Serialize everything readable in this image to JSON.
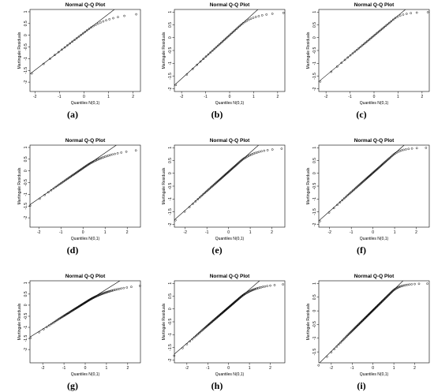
{
  "figure": {
    "panels": [
      {
        "caption": "(a)",
        "shape": 0.8
      },
      {
        "caption": "(b)",
        "shape": 0.55
      },
      {
        "caption": "(c)",
        "shape": 0.3
      },
      {
        "caption": "(d)",
        "shape": 0.8
      },
      {
        "caption": "(e)",
        "shape": 0.55
      },
      {
        "caption": "(f)",
        "shape": 0.3
      },
      {
        "caption": "(g)",
        "shape": 0.8
      },
      {
        "caption": "(h)",
        "shape": 0.55
      },
      {
        "caption": "(i)",
        "shape": 0.3
      }
    ]
  },
  "chart_data": [
    {
      "type": "scatter",
      "title": "Normal Q-Q Plot",
      "xlabel": "Quantiles N(0,1)",
      "ylabel": "Martingale Residuals",
      "n": 30,
      "xlim": [
        -2.2,
        2.3
      ],
      "ylim": [
        -2.4,
        1.1
      ],
      "xticks": [
        -2,
        -1,
        0,
        1,
        2
      ],
      "yticks": [
        1,
        0.5,
        0,
        -0.5,
        -1,
        -1.5,
        -2
      ],
      "reference_line": {
        "intercept": 0.11,
        "slope": 0.8
      },
      "point_color": "#000000",
      "line_color": "#000000"
    },
    {
      "type": "scatter",
      "title": "Normal Q-Q Plot",
      "xlabel": "Quantiles N(0,1)",
      "ylabel": "Martingale Residuals",
      "n": 40,
      "xlim": [
        -2.3,
        2.3
      ],
      "ylim": [
        -2.1,
        1.1
      ],
      "xticks": [
        -2,
        -1,
        0,
        1,
        2
      ],
      "yticks": [
        1,
        0.5,
        0,
        -0.5,
        -1,
        -1.5,
        -2
      ],
      "reference_line": {
        "intercept": 0.1,
        "slope": 0.85
      },
      "point_color": "#000000",
      "line_color": "#000000"
    },
    {
      "type": "scatter",
      "title": "Normal Q-Q Plot",
      "xlabel": "Quantiles N(0,1)",
      "ylabel": "Martingale Residuals",
      "n": 40,
      "xlim": [
        -2.3,
        2.3
      ],
      "ylim": [
        -2.1,
        1.1
      ],
      "xticks": [
        -2,
        -1,
        0,
        1,
        2
      ],
      "yticks": [
        1,
        0.5,
        0,
        -0.5,
        -1,
        -1.5,
        -2
      ],
      "reference_line": {
        "intercept": 0.08,
        "slope": 0.78
      },
      "point_color": "#000000",
      "line_color": "#000000"
    },
    {
      "type": "scatter",
      "title": "Normal Q-Q Plot",
      "xlabel": "Quantiles N(0,1)",
      "ylabel": "Martingale Residuals",
      "n": 60,
      "xlim": [
        -2.4,
        2.6
      ],
      "ylim": [
        -2.4,
        1.1
      ],
      "xticks": [
        -2,
        -1,
        0,
        1,
        2
      ],
      "yticks": [
        1,
        0.5,
        0,
        -0.5,
        -1,
        -1.5,
        -2
      ],
      "reference_line": {
        "intercept": 0.12,
        "slope": 0.65
      },
      "point_color": "#000000",
      "line_color": "#000000"
    },
    {
      "type": "scatter",
      "title": "Normal Q-Q Plot",
      "xlabel": "Quantiles N(0,1)",
      "ylabel": "Martingale Residuals",
      "n": 70,
      "xlim": [
        -2.5,
        2.6
      ],
      "ylim": [
        -2.1,
        1.1
      ],
      "xticks": [
        -2,
        -1,
        0,
        1,
        2
      ],
      "yticks": [
        1,
        0.5,
        0,
        -0.5,
        -1,
        -1.5,
        -2
      ],
      "reference_line": {
        "intercept": 0.06,
        "slope": 0.75
      },
      "point_color": "#000000",
      "line_color": "#000000"
    },
    {
      "type": "scatter",
      "title": "Normal Q-Q Plot",
      "xlabel": "Quantiles N(0,1)",
      "ylabel": "Martingale Residuals",
      "n": 70,
      "xlim": [
        -2.5,
        2.6
      ],
      "ylim": [
        -2.1,
        1.1
      ],
      "xticks": [
        -2,
        -1,
        0,
        1,
        2
      ],
      "yticks": [
        1,
        0.5,
        0,
        -0.5,
        -1,
        -1.5,
        -2
      ],
      "reference_line": {
        "intercept": 0.02,
        "slope": 0.75
      },
      "point_color": "#000000",
      "line_color": "#000000"
    },
    {
      "type": "scatter",
      "title": "Normal Q-Q Plot",
      "xlabel": "Quantiles N(0,1)",
      "ylabel": "Martingale Residuals",
      "n": 100,
      "xlim": [
        -2.6,
        2.6
      ],
      "ylim": [
        -2.6,
        1.1
      ],
      "xticks": [
        -2,
        -1,
        0,
        1,
        2
      ],
      "yticks": [
        1,
        0.5,
        0,
        -0.5,
        -1,
        -1.5,
        -2
      ],
      "reference_line": {
        "intercept": 0.12,
        "slope": 0.6
      },
      "point_color": "#000000",
      "line_color": "#000000"
    },
    {
      "type": "scatter",
      "title": "Normal Q-Q Plot",
      "xlabel": "Quantiles N(0,1)",
      "ylabel": "Martingale Residuals",
      "n": 110,
      "xlim": [
        -2.6,
        2.7
      ],
      "ylim": [
        -2.1,
        1.1
      ],
      "xticks": [
        -2,
        -1,
        0,
        1,
        2
      ],
      "yticks": [
        1,
        0.5,
        0,
        -0.5,
        -1,
        -1.5,
        -2
      ],
      "reference_line": {
        "intercept": 0.06,
        "slope": 0.7
      },
      "point_color": "#000000",
      "line_color": "#000000"
    },
    {
      "type": "scatter",
      "title": "Normal Q-Q Plot",
      "xlabel": "Quantiles N(0,1)",
      "ylabel": "Martingale Residuals",
      "n": 110,
      "xlim": [
        -2.6,
        2.7
      ],
      "ylim": [
        -1.9,
        1.1
      ],
      "xticks": [
        -2,
        -1,
        0,
        1,
        2
      ],
      "yticks": [
        1,
        0.5,
        0,
        -0.5,
        -1,
        -1.5
      ],
      "reference_line": {
        "intercept": 0.02,
        "slope": 0.75
      },
      "point_color": "#000000",
      "line_color": "#000000"
    }
  ]
}
